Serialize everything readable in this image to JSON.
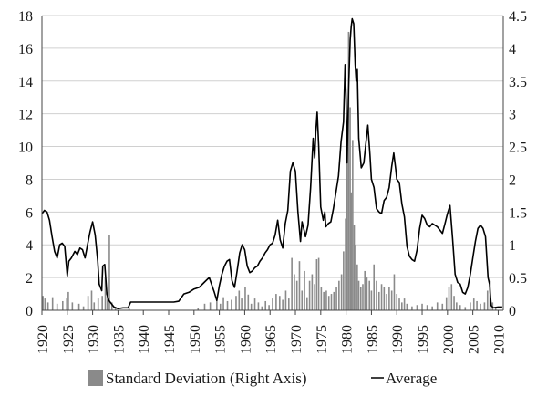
{
  "chart_data": {
    "type": "line",
    "title": "",
    "xlabel": "",
    "ylabel": "",
    "xlim": [
      1920,
      2011
    ],
    "ylim_left": [
      0,
      18
    ],
    "ylim_right": [
      0,
      4.5
    ],
    "x_ticks": [
      1920,
      1925,
      1930,
      1935,
      1940,
      1945,
      1950,
      1955,
      1960,
      1965,
      1970,
      1975,
      1980,
      1985,
      1990,
      1995,
      2000,
      2005,
      2010
    ],
    "y_left_ticks": [
      0,
      2,
      4,
      6,
      8,
      10,
      12,
      14,
      16,
      18
    ],
    "y_right_ticks": [
      "0",
      "0.5",
      "1",
      "1.5",
      "2",
      "2.5",
      "3",
      "3.5",
      "4",
      "4.5"
    ],
    "grid": true,
    "legend_position": "bottom",
    "colors": {
      "average": "#000000",
      "stddev": "#8a8a8a",
      "grid": "#d0d0d0"
    },
    "series": [
      {
        "name": "Average",
        "kind": "line",
        "axis": "left",
        "points": [
          [
            1920.0,
            5.9
          ],
          [
            1920.5,
            6.1
          ],
          [
            1921.0,
            6.0
          ],
          [
            1921.5,
            5.5
          ],
          [
            1922.0,
            4.5
          ],
          [
            1922.5,
            3.6
          ],
          [
            1923.0,
            3.2
          ],
          [
            1923.5,
            4.0
          ],
          [
            1924.0,
            4.1
          ],
          [
            1924.5,
            3.9
          ],
          [
            1925.0,
            2.1
          ],
          [
            1925.3,
            3.0
          ],
          [
            1925.8,
            3.2
          ],
          [
            1926.5,
            3.6
          ],
          [
            1927.0,
            3.4
          ],
          [
            1927.5,
            3.8
          ],
          [
            1928.0,
            3.7
          ],
          [
            1928.5,
            3.2
          ],
          [
            1929.0,
            4.0
          ],
          [
            1929.5,
            4.8
          ],
          [
            1930.0,
            5.4
          ],
          [
            1930.5,
            4.6
          ],
          [
            1931.0,
            3.0
          ],
          [
            1931.3,
            1.6
          ],
          [
            1931.8,
            1.2
          ],
          [
            1932.0,
            2.7
          ],
          [
            1932.4,
            2.8
          ],
          [
            1932.8,
            1.0
          ],
          [
            1933.2,
            0.6
          ],
          [
            1933.7,
            0.4
          ],
          [
            1934.2,
            0.2
          ],
          [
            1935.0,
            0.1
          ],
          [
            1936.0,
            0.15
          ],
          [
            1937.0,
            0.15
          ],
          [
            1937.5,
            0.5
          ],
          [
            1938.0,
            0.5
          ],
          [
            1940.0,
            0.5
          ],
          [
            1942.0,
            0.5
          ],
          [
            1944.0,
            0.5
          ],
          [
            1946.0,
            0.5
          ],
          [
            1947.0,
            0.55
          ],
          [
            1948.0,
            1.0
          ],
          [
            1949.0,
            1.1
          ],
          [
            1950.0,
            1.3
          ],
          [
            1951.0,
            1.4
          ],
          [
            1952.0,
            1.7
          ],
          [
            1953.0,
            2.0
          ],
          [
            1954.0,
            1.1
          ],
          [
            1954.5,
            0.6
          ],
          [
            1955.0,
            1.5
          ],
          [
            1955.5,
            2.2
          ],
          [
            1956.0,
            2.7
          ],
          [
            1956.5,
            3.0
          ],
          [
            1957.0,
            3.1
          ],
          [
            1957.5,
            1.8
          ],
          [
            1958.0,
            1.4
          ],
          [
            1958.5,
            2.4
          ],
          [
            1959.0,
            3.5
          ],
          [
            1959.5,
            4.0
          ],
          [
            1960.0,
            3.7
          ],
          [
            1960.5,
            2.7
          ],
          [
            1961.0,
            2.3
          ],
          [
            1961.5,
            2.4
          ],
          [
            1962.0,
            2.6
          ],
          [
            1962.5,
            2.7
          ],
          [
            1963.0,
            3.0
          ],
          [
            1963.5,
            3.2
          ],
          [
            1964.0,
            3.5
          ],
          [
            1964.5,
            3.7
          ],
          [
            1965.0,
            4.0
          ],
          [
            1965.5,
            4.1
          ],
          [
            1966.0,
            4.6
          ],
          [
            1966.5,
            5.5
          ],
          [
            1967.0,
            4.3
          ],
          [
            1967.5,
            3.8
          ],
          [
            1968.0,
            5.3
          ],
          [
            1968.5,
            6.1
          ],
          [
            1969.0,
            8.5
          ],
          [
            1969.5,
            9.0
          ],
          [
            1970.0,
            8.5
          ],
          [
            1970.5,
            6.0
          ],
          [
            1971.0,
            4.2
          ],
          [
            1971.3,
            5.4
          ],
          [
            1971.7,
            4.9
          ],
          [
            1972.0,
            4.5
          ],
          [
            1972.5,
            5.2
          ],
          [
            1973.0,
            7.5
          ],
          [
            1973.5,
            10.5
          ],
          [
            1973.8,
            9.3
          ],
          [
            1974.0,
            10.8
          ],
          [
            1974.3,
            12.1
          ],
          [
            1974.6,
            10.0
          ],
          [
            1975.0,
            6.3
          ],
          [
            1975.5,
            5.5
          ],
          [
            1975.8,
            6.0
          ],
          [
            1976.0,
            5.1
          ],
          [
            1976.5,
            5.3
          ],
          [
            1977.0,
            5.4
          ],
          [
            1977.5,
            6.2
          ],
          [
            1978.0,
            7.2
          ],
          [
            1978.5,
            8.2
          ],
          [
            1979.0,
            10.3
          ],
          [
            1979.5,
            11.5
          ],
          [
            1979.8,
            15.0
          ],
          [
            1980.0,
            13.0
          ],
          [
            1980.2,
            9.0
          ],
          [
            1980.5,
            13.6
          ],
          [
            1980.8,
            16.5
          ],
          [
            1981.0,
            17.3
          ],
          [
            1981.2,
            17.8
          ],
          [
            1981.5,
            17.5
          ],
          [
            1981.8,
            15.0
          ],
          [
            1982.0,
            14.0
          ],
          [
            1982.2,
            14.7
          ],
          [
            1982.5,
            10.5
          ],
          [
            1983.0,
            8.7
          ],
          [
            1983.5,
            9.0
          ],
          [
            1984.0,
            10.5
          ],
          [
            1984.3,
            11.3
          ],
          [
            1984.7,
            9.5
          ],
          [
            1985.0,
            8.0
          ],
          [
            1985.5,
            7.5
          ],
          [
            1986.0,
            6.2
          ],
          [
            1986.5,
            6.0
          ],
          [
            1987.0,
            5.9
          ],
          [
            1987.5,
            6.7
          ],
          [
            1988.0,
            6.9
          ],
          [
            1988.5,
            7.5
          ],
          [
            1989.0,
            8.8
          ],
          [
            1989.4,
            9.6
          ],
          [
            1989.8,
            8.6
          ],
          [
            1990.0,
            8.0
          ],
          [
            1990.5,
            7.8
          ],
          [
            1991.0,
            6.5
          ],
          [
            1991.5,
            5.7
          ],
          [
            1992.0,
            3.9
          ],
          [
            1992.5,
            3.3
          ],
          [
            1993.0,
            3.1
          ],
          [
            1993.5,
            3.0
          ],
          [
            1994.0,
            3.7
          ],
          [
            1994.5,
            5.0
          ],
          [
            1995.0,
            5.8
          ],
          [
            1995.5,
            5.6
          ],
          [
            1996.0,
            5.2
          ],
          [
            1996.5,
            5.1
          ],
          [
            1997.0,
            5.3
          ],
          [
            1998.0,
            5.1
          ],
          [
            1998.5,
            4.9
          ],
          [
            1999.0,
            4.7
          ],
          [
            1999.5,
            5.3
          ],
          [
            2000.0,
            5.9
          ],
          [
            2000.5,
            6.4
          ],
          [
            2001.0,
            4.4
          ],
          [
            2001.5,
            2.2
          ],
          [
            2002.0,
            1.7
          ],
          [
            2002.5,
            1.6
          ],
          [
            2003.0,
            1.1
          ],
          [
            2003.5,
            1.0
          ],
          [
            2004.0,
            1.4
          ],
          [
            2004.5,
            2.2
          ],
          [
            2005.0,
            3.2
          ],
          [
            2005.5,
            4.2
          ],
          [
            2006.0,
            5.0
          ],
          [
            2006.5,
            5.2
          ],
          [
            2007.0,
            5.0
          ],
          [
            2007.5,
            4.5
          ],
          [
            2008.0,
            2.0
          ],
          [
            2008.3,
            1.6
          ],
          [
            2008.6,
            0.3
          ],
          [
            2009.0,
            0.15
          ],
          [
            2010.0,
            0.2
          ],
          [
            2010.8,
            0.2
          ]
        ]
      },
      {
        "name": "Standard Deviation (Right Axis)",
        "kind": "bar",
        "axis": "right",
        "points": [
          [
            1920.2,
            0.22
          ],
          [
            1920.6,
            0.18
          ],
          [
            1921.2,
            0.12
          ],
          [
            1922.1,
            0.2
          ],
          [
            1923.0,
            0.1
          ],
          [
            1924.1,
            0.14
          ],
          [
            1924.9,
            0.18
          ],
          [
            1925.2,
            0.28
          ],
          [
            1926.0,
            0.12
          ],
          [
            1927.3,
            0.1
          ],
          [
            1928.2,
            0.06
          ],
          [
            1929.1,
            0.22
          ],
          [
            1929.8,
            0.3
          ],
          [
            1930.3,
            0.12
          ],
          [
            1931.1,
            0.18
          ],
          [
            1931.9,
            0.22
          ],
          [
            1932.5,
            0.5
          ],
          [
            1932.9,
            0.28
          ],
          [
            1933.3,
            1.15
          ],
          [
            1933.8,
            0.12
          ],
          [
            1934.5,
            0.05
          ],
          [
            1937.2,
            0.03
          ],
          [
            1950.8,
            0.04
          ],
          [
            1952.1,
            0.1
          ],
          [
            1953.2,
            0.12
          ],
          [
            1954.5,
            0.18
          ],
          [
            1955.2,
            0.1
          ],
          [
            1955.8,
            0.2
          ],
          [
            1956.6,
            0.14
          ],
          [
            1957.4,
            0.16
          ],
          [
            1958.3,
            0.22
          ],
          [
            1958.9,
            0.3
          ],
          [
            1959.4,
            0.18
          ],
          [
            1960.1,
            0.35
          ],
          [
            1960.7,
            0.24
          ],
          [
            1961.3,
            0.1
          ],
          [
            1962.0,
            0.18
          ],
          [
            1962.7,
            0.12
          ],
          [
            1963.4,
            0.06
          ],
          [
            1964.1,
            0.14
          ],
          [
            1964.8,
            0.08
          ],
          [
            1965.5,
            0.18
          ],
          [
            1966.2,
            0.25
          ],
          [
            1966.9,
            0.22
          ],
          [
            1967.5,
            0.16
          ],
          [
            1968.1,
            0.3
          ],
          [
            1968.7,
            0.18
          ],
          [
            1969.3,
            0.8
          ],
          [
            1969.8,
            0.55
          ],
          [
            1970.3,
            0.45
          ],
          [
            1970.8,
            0.75
          ],
          [
            1971.3,
            0.3
          ],
          [
            1971.8,
            0.6
          ],
          [
            1972.3,
            0.2
          ],
          [
            1972.8,
            0.45
          ],
          [
            1973.3,
            0.55
          ],
          [
            1973.8,
            0.4
          ],
          [
            1974.2,
            0.78
          ],
          [
            1974.6,
            0.8
          ],
          [
            1975.1,
            0.35
          ],
          [
            1975.6,
            0.28
          ],
          [
            1976.1,
            0.3
          ],
          [
            1976.6,
            0.22
          ],
          [
            1977.1,
            0.25
          ],
          [
            1977.6,
            0.28
          ],
          [
            1978.1,
            0.35
          ],
          [
            1978.6,
            0.45
          ],
          [
            1979.1,
            0.55
          ],
          [
            1979.5,
            0.9
          ],
          [
            1979.9,
            1.4
          ],
          [
            1980.2,
            2.3
          ],
          [
            1980.5,
            4.25
          ],
          [
            1980.8,
            3.1
          ],
          [
            1981.0,
            1.8
          ],
          [
            1981.3,
            2.6
          ],
          [
            1981.6,
            1.3
          ],
          [
            1981.9,
            1.0
          ],
          [
            1982.2,
            0.7
          ],
          [
            1982.5,
            0.45
          ],
          [
            1982.9,
            0.35
          ],
          [
            1983.3,
            0.4
          ],
          [
            1983.7,
            0.6
          ],
          [
            1984.1,
            0.5
          ],
          [
            1984.6,
            0.45
          ],
          [
            1985.0,
            0.3
          ],
          [
            1985.5,
            0.7
          ],
          [
            1986.0,
            0.45
          ],
          [
            1986.5,
            0.28
          ],
          [
            1987.0,
            0.4
          ],
          [
            1987.5,
            0.35
          ],
          [
            1988.0,
            0.25
          ],
          [
            1988.5,
            0.35
          ],
          [
            1989.0,
            0.3
          ],
          [
            1989.5,
            0.55
          ],
          [
            1990.0,
            0.25
          ],
          [
            1990.5,
            0.18
          ],
          [
            1991.0,
            0.12
          ],
          [
            1991.5,
            0.18
          ],
          [
            1992.0,
            0.1
          ],
          [
            1993.0,
            0.06
          ],
          [
            1994.0,
            0.08
          ],
          [
            1995.0,
            0.1
          ],
          [
            1996.0,
            0.08
          ],
          [
            1997.0,
            0.06
          ],
          [
            1998.0,
            0.12
          ],
          [
            1999.0,
            0.1
          ],
          [
            1999.8,
            0.2
          ],
          [
            2000.3,
            0.35
          ],
          [
            2000.8,
            0.4
          ],
          [
            2001.3,
            0.22
          ],
          [
            2001.8,
            0.12
          ],
          [
            2002.5,
            0.08
          ],
          [
            2003.5,
            0.05
          ],
          [
            2004.5,
            0.12
          ],
          [
            2005.2,
            0.18
          ],
          [
            2005.8,
            0.14
          ],
          [
            2006.5,
            0.1
          ],
          [
            2007.3,
            0.12
          ],
          [
            2007.9,
            0.3
          ],
          [
            2008.4,
            0.45
          ],
          [
            2008.9,
            0.12
          ],
          [
            2009.5,
            0.05
          ]
        ]
      }
    ]
  }
}
